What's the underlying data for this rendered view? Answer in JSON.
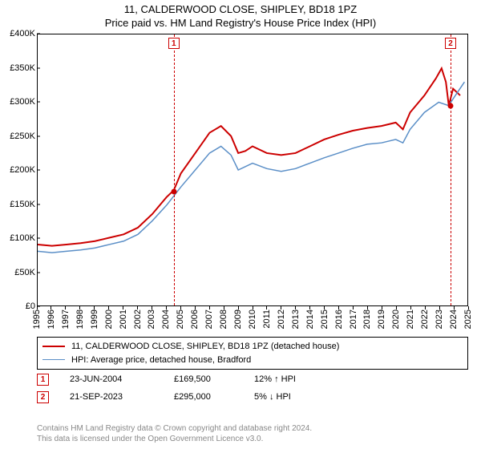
{
  "title_line1": "11, CALDERWOOD CLOSE, SHIPLEY, BD18 1PZ",
  "title_line2": "Price paid vs. HM Land Registry's House Price Index (HPI)",
  "chart": {
    "type": "line",
    "background_color": "#ffffff",
    "border_color": "#000000",
    "x_years": [
      1995,
      1996,
      1997,
      1998,
      1999,
      2000,
      2001,
      2002,
      2003,
      2004,
      2005,
      2006,
      2007,
      2008,
      2009,
      2010,
      2011,
      2012,
      2013,
      2014,
      2015,
      2016,
      2017,
      2018,
      2019,
      2020,
      2021,
      2022,
      2023,
      2024,
      2025
    ],
    "y_ticks": [
      0,
      50,
      100,
      150,
      200,
      250,
      300,
      350,
      400
    ],
    "y_tick_labels": [
      "£0",
      "£50K",
      "£100K",
      "£150K",
      "£200K",
      "£250K",
      "£300K",
      "£350K",
      "£400K"
    ],
    "ylim": [
      0,
      400
    ],
    "xlim": [
      1995,
      2025
    ],
    "series": [
      {
        "name": "property",
        "color": "#cc0000",
        "line_width": 2,
        "points": [
          [
            1995,
            90
          ],
          [
            1996,
            88
          ],
          [
            1997,
            90
          ],
          [
            1998,
            92
          ],
          [
            1999,
            95
          ],
          [
            2000,
            100
          ],
          [
            2001,
            105
          ],
          [
            2002,
            115
          ],
          [
            2003,
            135
          ],
          [
            2004,
            160
          ],
          [
            2004.5,
            170
          ],
          [
            2005,
            195
          ],
          [
            2006,
            225
          ],
          [
            2007,
            255
          ],
          [
            2007.8,
            265
          ],
          [
            2008.5,
            250
          ],
          [
            2009,
            225
          ],
          [
            2009.5,
            228
          ],
          [
            2010,
            235
          ],
          [
            2011,
            225
          ],
          [
            2012,
            222
          ],
          [
            2013,
            225
          ],
          [
            2014,
            235
          ],
          [
            2015,
            245
          ],
          [
            2016,
            252
          ],
          [
            2017,
            258
          ],
          [
            2018,
            262
          ],
          [
            2019,
            265
          ],
          [
            2020,
            270
          ],
          [
            2020.5,
            260
          ],
          [
            2021,
            285
          ],
          [
            2022,
            310
          ],
          [
            2022.8,
            335
          ],
          [
            2023.2,
            350
          ],
          [
            2023.5,
            330
          ],
          [
            2023.7,
            295
          ],
          [
            2024,
            320
          ],
          [
            2024.5,
            310
          ]
        ]
      },
      {
        "name": "hpi",
        "color": "#5b8fc7",
        "line_width": 1.5,
        "points": [
          [
            1995,
            80
          ],
          [
            1996,
            78
          ],
          [
            1997,
            80
          ],
          [
            1998,
            82
          ],
          [
            1999,
            85
          ],
          [
            2000,
            90
          ],
          [
            2001,
            95
          ],
          [
            2002,
            105
          ],
          [
            2003,
            125
          ],
          [
            2004,
            148
          ],
          [
            2005,
            175
          ],
          [
            2006,
            200
          ],
          [
            2007,
            225
          ],
          [
            2007.8,
            235
          ],
          [
            2008.5,
            222
          ],
          [
            2009,
            200
          ],
          [
            2009.5,
            205
          ],
          [
            2010,
            210
          ],
          [
            2011,
            202
          ],
          [
            2012,
            198
          ],
          [
            2013,
            202
          ],
          [
            2014,
            210
          ],
          [
            2015,
            218
          ],
          [
            2016,
            225
          ],
          [
            2017,
            232
          ],
          [
            2018,
            238
          ],
          [
            2019,
            240
          ],
          [
            2020,
            245
          ],
          [
            2020.5,
            240
          ],
          [
            2021,
            260
          ],
          [
            2022,
            285
          ],
          [
            2023,
            300
          ],
          [
            2023.7,
            295
          ],
          [
            2024,
            305
          ],
          [
            2024.8,
            330
          ]
        ]
      }
    ],
    "markers": [
      {
        "n": "1",
        "year": 2004.47,
        "value": 169.5,
        "color": "#cc0000"
      },
      {
        "n": "2",
        "year": 2023.72,
        "value": 295.0,
        "color": "#cc0000"
      }
    ]
  },
  "legend": {
    "items": [
      {
        "color": "#cc0000",
        "width": 2,
        "label": "11, CALDERWOOD CLOSE, SHIPLEY, BD18 1PZ (detached house)"
      },
      {
        "color": "#5b8fc7",
        "width": 1.5,
        "label": "HPI: Average price, detached house, Bradford"
      }
    ]
  },
  "marker_rows": [
    {
      "n": "1",
      "color": "#cc0000",
      "date": "23-JUN-2004",
      "price": "£169,500",
      "pct": "12% ↑ HPI"
    },
    {
      "n": "2",
      "color": "#cc0000",
      "date": "21-SEP-2023",
      "price": "£295,000",
      "pct": "5% ↓ HPI"
    }
  ],
  "footer_line1": "Contains HM Land Registry data © Crown copyright and database right 2024.",
  "footer_line2": "This data is licensed under the Open Government Licence v3.0."
}
